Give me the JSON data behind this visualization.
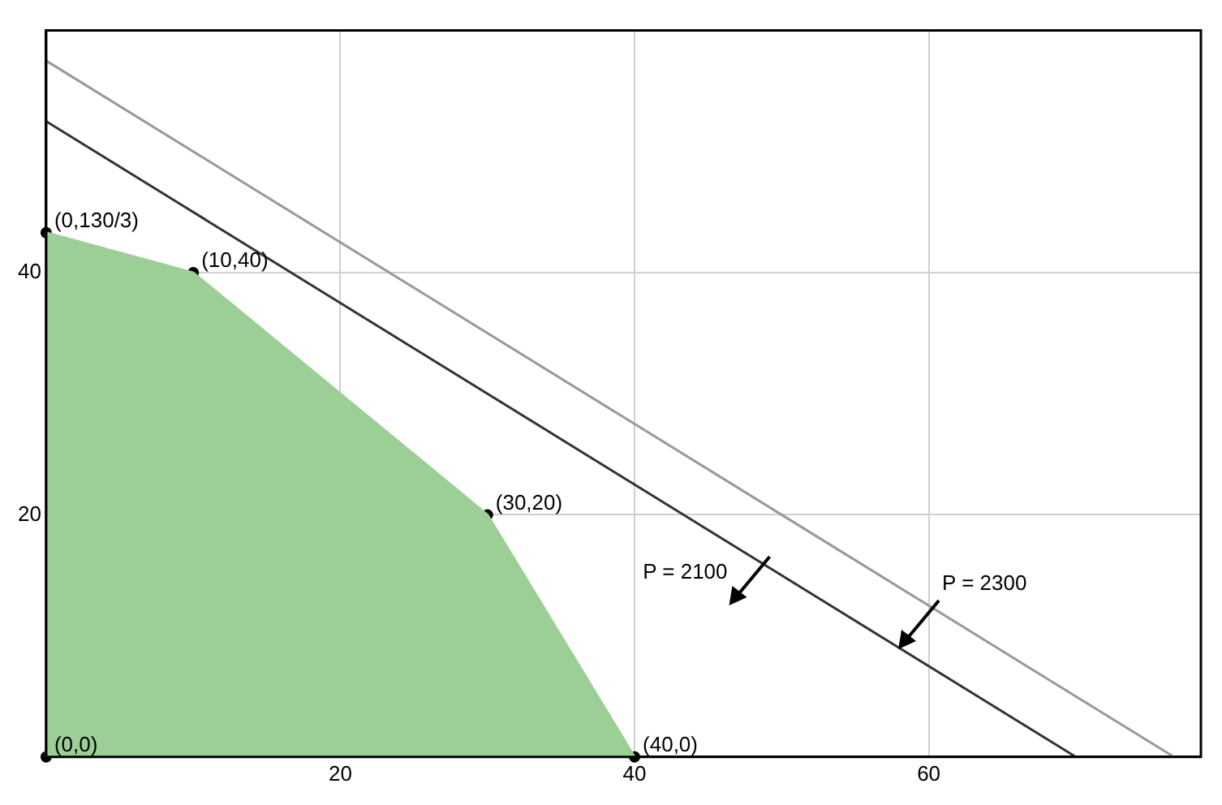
{
  "chart_data": {
    "type": "area",
    "xlim": [
      0,
      78.5
    ],
    "ylim": [
      0,
      60
    ],
    "xticks": [
      {
        "value": 0,
        "label": null
      },
      20,
      40,
      60
    ],
    "yticks": [
      {
        "value": 0,
        "label": null
      },
      20,
      40
    ],
    "grid": true,
    "legend": false,
    "series": [
      {
        "type": "area",
        "color": "#9ccf96",
        "x": [
          0,
          0,
          10,
          30,
          40
        ],
        "values": [
          0,
          43.3,
          40,
          20,
          0
        ]
      },
      {
        "type": "line",
        "name": "P = 2100",
        "color": "#333333",
        "x": [
          0,
          70
        ],
        "values": [
          52.5,
          0
        ]
      },
      {
        "type": "line",
        "name": "P = 2300",
        "color": "#999999",
        "x": [
          0,
          76.67
        ],
        "values": [
          57.5,
          0
        ]
      },
      {
        "type": "scatter",
        "color": "#000000",
        "marker": "circle",
        "x": [
          0,
          0,
          10,
          30,
          40
        ],
        "values": [
          0,
          43.3,
          40,
          20,
          0
        ]
      }
    ],
    "annotations": [
      {
        "text": "(0,0)",
        "x": 0,
        "y": 0
      },
      {
        "text": "(0,130/3)",
        "x": 0,
        "y": 43.3
      },
      {
        "text": "(10,40)",
        "x": 10,
        "y": 40
      },
      {
        "text": "(30,20)",
        "x": 30,
        "y": 20
      },
      {
        "text": "(40,0)",
        "x": 40,
        "y": 0
      }
    ]
  }
}
